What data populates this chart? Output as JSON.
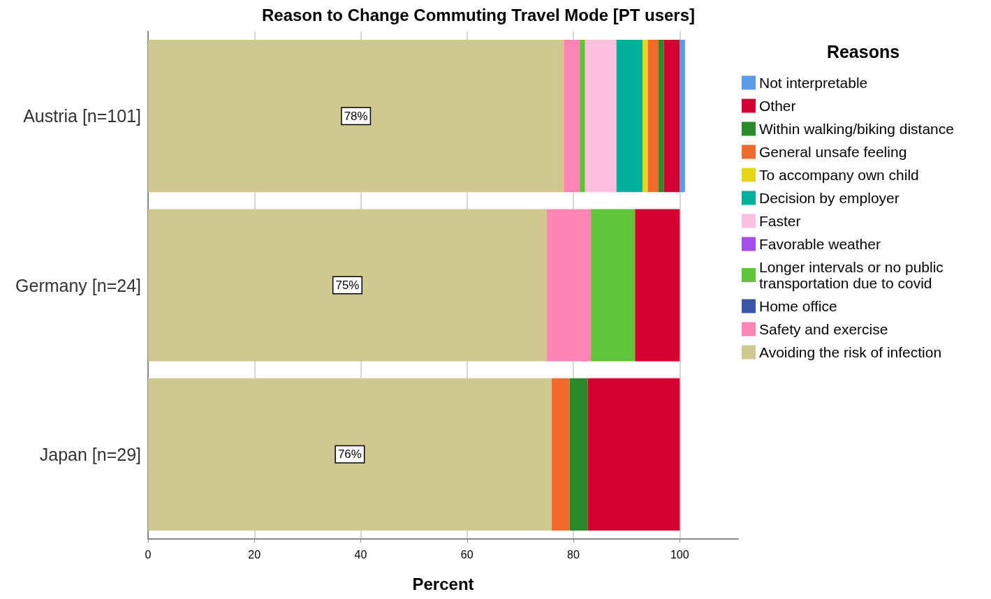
{
  "chart_data": {
    "type": "bar",
    "orientation": "horizontal",
    "stacked": true,
    "title": "Reason to Change Commuting Travel Mode [PT users]",
    "xlabel": "Percent",
    "legend_title": "Reasons",
    "legend": "right",
    "grid": "x",
    "categories": [
      "Austria [n=101]",
      "Germany [n=24]",
      "Japan [n=29]"
    ],
    "xlim": [
      0,
      111
    ],
    "xticks": [
      0,
      20,
      40,
      60,
      80,
      100
    ],
    "series": [
      {
        "name": "Avoiding the risk of infection",
        "color": "#cfc98f",
        "values": [
          78.2,
          75.0,
          75.9
        ],
        "value_labels": [
          "78%",
          "75%",
          "76%"
        ]
      },
      {
        "name": "Safety and exercise",
        "color": "#ff85b4",
        "values": [
          3.0,
          8.3,
          0
        ]
      },
      {
        "name": "Home office",
        "color": "#3a55a8",
        "values": [
          0,
          0,
          0
        ]
      },
      {
        "name": "Longer intervals or no public transportation due to covid",
        "color": "#5fc43a",
        "values": [
          1.0,
          8.3,
          0
        ]
      },
      {
        "name": "Favorable weather",
        "color": "#a64df0",
        "values": [
          0,
          0,
          0
        ]
      },
      {
        "name": "Faster",
        "color": "#ffc0e0",
        "values": [
          5.9,
          0,
          0
        ]
      },
      {
        "name": "Decision by employer",
        "color": "#00b09b",
        "values": [
          4.9,
          0,
          0
        ]
      },
      {
        "name": "To accompany own child",
        "color": "#e6d619",
        "values": [
          1.0,
          0,
          0
        ]
      },
      {
        "name": "General unsafe feeling",
        "color": "#f26a2c",
        "values": [
          2.0,
          0,
          3.4
        ]
      },
      {
        "name": "Within walking/biking distance",
        "color": "#2a8a2a",
        "values": [
          1.0,
          0,
          3.4
        ]
      },
      {
        "name": "Other",
        "color": "#d50032",
        "values": [
          3.0,
          8.4,
          17.3
        ]
      },
      {
        "name": "Not interpretable",
        "color": "#5b9be6",
        "values": [
          1.0,
          0,
          0
        ]
      }
    ]
  }
}
